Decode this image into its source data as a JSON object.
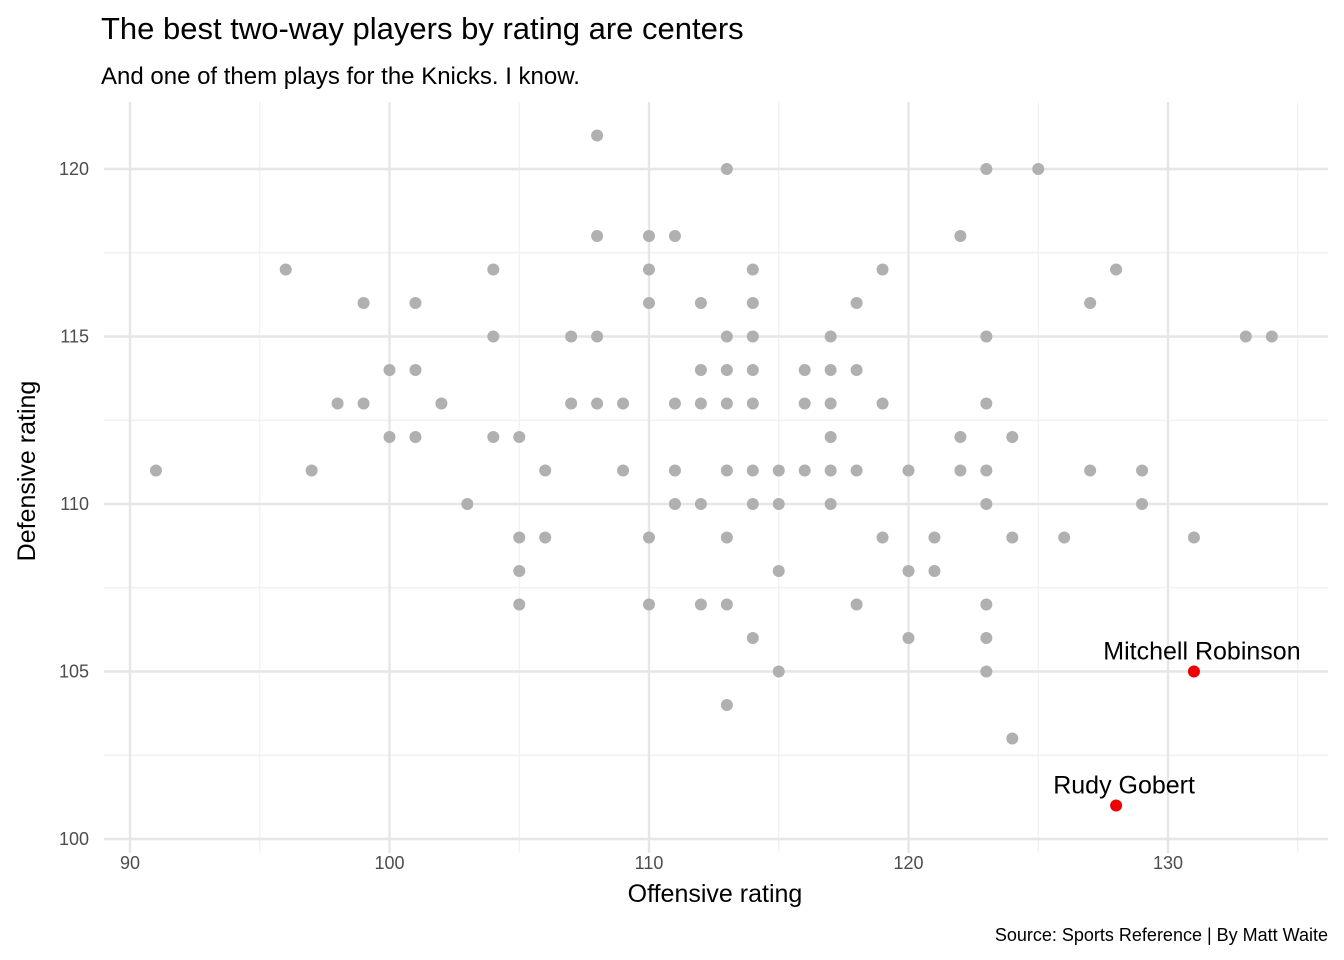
{
  "chart_data": {
    "type": "scatter",
    "title": "The best two-way players by rating are centers",
    "subtitle": "And one of them plays for the Knicks. I know.",
    "xlabel": "Offensive rating",
    "ylabel": "Defensive rating",
    "caption": "Source: Sports Reference | By Matt Waite",
    "xlim": [
      89.8,
      136
    ],
    "ylim": [
      99.9,
      122
    ],
    "x_ticks": [
      90,
      100,
      110,
      120,
      130
    ],
    "y_ticks": [
      100,
      105,
      110,
      115,
      120
    ],
    "grid": true,
    "colors": {
      "base": "#b0b0b0",
      "highlight": "#ee0000",
      "grid_major": "#e6e6e6",
      "grid_minor": "#efefef"
    },
    "series": [
      {
        "points": [
          [
            91,
            111
          ],
          [
            96,
            117
          ],
          [
            97,
            111
          ],
          [
            98,
            113
          ],
          [
            99,
            116
          ],
          [
            99,
            113
          ],
          [
            100,
            114
          ],
          [
            100,
            112
          ],
          [
            101,
            116
          ],
          [
            101,
            114
          ],
          [
            101,
            112
          ],
          [
            102,
            113
          ],
          [
            103,
            110
          ],
          [
            104,
            117
          ],
          [
            104,
            115
          ],
          [
            104,
            112
          ],
          [
            105,
            112
          ],
          [
            105,
            109
          ],
          [
            105,
            108
          ],
          [
            105,
            107
          ],
          [
            106,
            111
          ],
          [
            106,
            109
          ],
          [
            107,
            115
          ],
          [
            107,
            113
          ],
          [
            108,
            121
          ],
          [
            108,
            118
          ],
          [
            108,
            115
          ],
          [
            108,
            113
          ],
          [
            109,
            113
          ],
          [
            109,
            111
          ],
          [
            110,
            118
          ],
          [
            110,
            117
          ],
          [
            110,
            116
          ],
          [
            110,
            109
          ],
          [
            110,
            107
          ],
          [
            111,
            118
          ],
          [
            111,
            113
          ],
          [
            111,
            111
          ],
          [
            111,
            110
          ],
          [
            112,
            116
          ],
          [
            112,
            114
          ],
          [
            112,
            113
          ],
          [
            112,
            110
          ],
          [
            112,
            107
          ],
          [
            113,
            120
          ],
          [
            113,
            115
          ],
          [
            113,
            114
          ],
          [
            113,
            113
          ],
          [
            113,
            111
          ],
          [
            113,
            109
          ],
          [
            113,
            107
          ],
          [
            113,
            104
          ],
          [
            114,
            117
          ],
          [
            114,
            116
          ],
          [
            114,
            115
          ],
          [
            114,
            114
          ],
          [
            114,
            113
          ],
          [
            114,
            111
          ],
          [
            114,
            110
          ],
          [
            114,
            106
          ],
          [
            115,
            111
          ],
          [
            115,
            110
          ],
          [
            115,
            108
          ],
          [
            115,
            105
          ],
          [
            116,
            114
          ],
          [
            116,
            113
          ],
          [
            116,
            111
          ],
          [
            117,
            115
          ],
          [
            117,
            114
          ],
          [
            117,
            113
          ],
          [
            117,
            112
          ],
          [
            117,
            111
          ],
          [
            117,
            110
          ],
          [
            118,
            116
          ],
          [
            118,
            114
          ],
          [
            118,
            111
          ],
          [
            118,
            107
          ],
          [
            119,
            117
          ],
          [
            119,
            113
          ],
          [
            119,
            109
          ],
          [
            120,
            111
          ],
          [
            120,
            108
          ],
          [
            120,
            106
          ],
          [
            121,
            109
          ],
          [
            121,
            108
          ],
          [
            122,
            118
          ],
          [
            122,
            112
          ],
          [
            122,
            111
          ],
          [
            123,
            120
          ],
          [
            123,
            115
          ],
          [
            123,
            113
          ],
          [
            123,
            111
          ],
          [
            123,
            110
          ],
          [
            123,
            107
          ],
          [
            123,
            106
          ],
          [
            123,
            105
          ],
          [
            124,
            112
          ],
          [
            124,
            109
          ],
          [
            124,
            103
          ],
          [
            125,
            120
          ],
          [
            126,
            109
          ],
          [
            127,
            116
          ],
          [
            127,
            111
          ],
          [
            128,
            117
          ],
          [
            129,
            111
          ],
          [
            129,
            110
          ],
          [
            131,
            109
          ],
          [
            133,
            115
          ],
          [
            134,
            115
          ]
        ]
      },
      {
        "points": [
          [
            131,
            105
          ],
          [
            128,
            101
          ]
        ]
      }
    ],
    "annotations": [
      {
        "label": "Mitchell Robinson",
        "x": 131,
        "y": 105
      },
      {
        "label": "Rudy Gobert",
        "x": 128,
        "y": 101
      }
    ]
  }
}
